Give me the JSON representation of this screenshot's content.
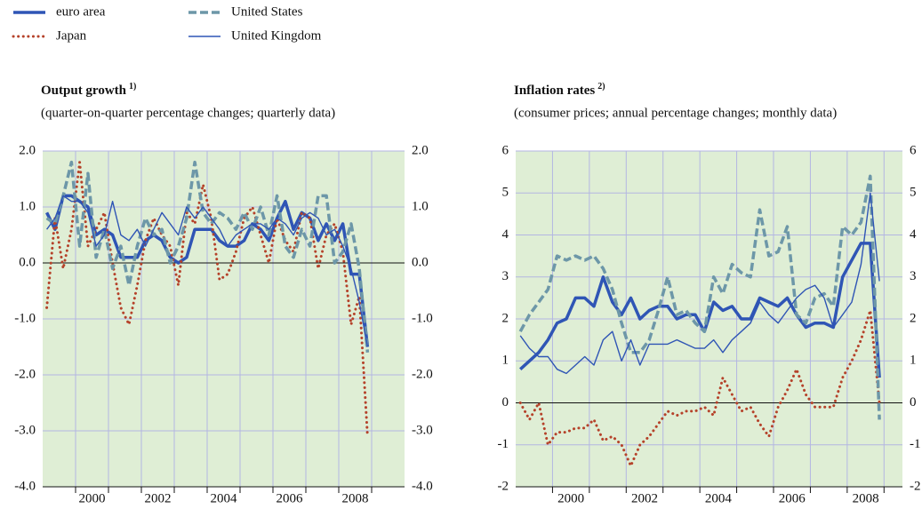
{
  "chart_data": [
    {
      "type": "line",
      "title": "Output growth",
      "title_note": "1)",
      "subtitle": "(quarter-on-quarter percentage changes; quarterly data)",
      "xlim": [
        1999,
        2010
      ],
      "ylim": [
        -4,
        2
      ],
      "yticks": [
        {
          "value": 2,
          "label": "2.0"
        },
        {
          "value": 1,
          "label": "1.0"
        },
        {
          "value": 0,
          "label": "0.0"
        },
        {
          "value": -1,
          "label": "-1.0"
        },
        {
          "value": -2,
          "label": "-2.0"
        },
        {
          "value": -3,
          "label": "-3.0"
        },
        {
          "value": -4,
          "label": "-4.0"
        }
      ],
      "xticks": [
        {
          "value": 2000.5,
          "label": "2000"
        },
        {
          "value": 2002.5,
          "label": "2002"
        },
        {
          "value": 2004.5,
          "label": "2004"
        },
        {
          "value": 2006.5,
          "label": "2006"
        },
        {
          "value": 2008.5,
          "label": "2008"
        }
      ],
      "xgrid": [
        2000,
        2001,
        2002,
        2003,
        2004,
        2005,
        2006,
        2007,
        2008,
        2009
      ],
      "grid": true,
      "x": [
        1999.125,
        1999.375,
        1999.625,
        1999.875,
        2000.125,
        2000.375,
        2000.625,
        2000.875,
        2001.125,
        2001.375,
        2001.625,
        2001.875,
        2002.125,
        2002.375,
        2002.625,
        2002.875,
        2003.125,
        2003.375,
        2003.625,
        2003.875,
        2004.125,
        2004.375,
        2004.625,
        2004.875,
        2005.125,
        2005.375,
        2005.625,
        2005.875,
        2006.125,
        2006.375,
        2006.625,
        2006.875,
        2007.125,
        2007.375,
        2007.625,
        2007.875,
        2008.125,
        2008.375,
        2008.625,
        2008.875
      ],
      "series": [
        {
          "name": "euro area",
          "color": "#2f55b5",
          "style": "thick",
          "values": [
            0.9,
            0.6,
            1.2,
            1.2,
            1.1,
            1.0,
            0.5,
            0.6,
            0.5,
            0.1,
            0.1,
            0.1,
            0.4,
            0.5,
            0.4,
            0.1,
            0.0,
            0.1,
            0.6,
            0.6,
            0.6,
            0.4,
            0.3,
            0.3,
            0.4,
            0.7,
            0.6,
            0.4,
            0.8,
            1.1,
            0.6,
            0.9,
            0.8,
            0.4,
            0.7,
            0.4,
            0.7,
            -0.2,
            -0.2,
            -1.5
          ]
        },
        {
          "name": "Japan",
          "color": "#b5422a",
          "style": "dotted",
          "values": [
            -0.8,
            0.8,
            -0.1,
            0.6,
            1.8,
            0.3,
            0.6,
            0.9,
            0.0,
            -0.8,
            -1.1,
            -0.4,
            0.4,
            0.8,
            0.5,
            0.3,
            -0.4,
            0.9,
            0.7,
            1.4,
            0.8,
            -0.3,
            -0.2,
            0.2,
            0.8,
            1.0,
            0.5,
            0.0,
            0.8,
            0.4,
            0.2,
            0.9,
            0.8,
            -0.1,
            0.5,
            0.7,
            0.2,
            -1.1,
            -0.6,
            -3.1
          ]
        },
        {
          "name": "United States",
          "color": "#6d97a8",
          "style": "dashed",
          "values": [
            0.8,
            0.7,
            1.2,
            1.8,
            0.3,
            1.6,
            0.1,
            0.6,
            -0.1,
            0.3,
            -0.4,
            0.3,
            0.8,
            0.5,
            0.6,
            0.0,
            0.3,
            0.8,
            1.8,
            0.9,
            0.7,
            0.9,
            0.8,
            0.6,
            0.9,
            0.6,
            1.0,
            0.5,
            1.2,
            0.3,
            0.1,
            0.6,
            0.3,
            1.2,
            1.2,
            0.0,
            0.2,
            0.7,
            -0.1,
            -1.6
          ]
        },
        {
          "name": "United Kingdom",
          "color": "#2f55b5",
          "style": "thin",
          "values": [
            0.6,
            0.8,
            1.2,
            1.1,
            1.1,
            0.9,
            0.3,
            0.5,
            1.1,
            0.5,
            0.4,
            0.6,
            0.3,
            0.6,
            0.9,
            0.7,
            0.5,
            1.0,
            0.8,
            1.0,
            0.8,
            0.6,
            0.3,
            0.5,
            0.6,
            0.7,
            0.7,
            0.6,
            0.8,
            0.7,
            0.5,
            0.8,
            0.9,
            0.8,
            0.5,
            0.6,
            0.3,
            -0.1,
            -0.7,
            -1.5
          ]
        }
      ]
    },
    {
      "type": "line",
      "title": "Inflation rates",
      "title_note": "2)",
      "subtitle": "(consumer prices; annual percentage changes; monthly data)",
      "xlim": [
        1999,
        2009.5
      ],
      "ylim": [
        -2,
        6
      ],
      "yticks": [
        6,
        5,
        4,
        3,
        2,
        1,
        0,
        -1,
        -2
      ],
      "xticks": [
        {
          "value": 2000.5,
          "label": "2000"
        },
        {
          "value": 2002.5,
          "label": "2002"
        },
        {
          "value": 2004.5,
          "label": "2004"
        },
        {
          "value": 2006.5,
          "label": "2006"
        },
        {
          "value": 2008.5,
          "label": "2008"
        }
      ],
      "xgrid": [
        2000,
        2001,
        2002,
        2003,
        2004,
        2005,
        2006,
        2007,
        2008,
        2009
      ],
      "grid": true,
      "x": [
        1999.125,
        1999.375,
        1999.625,
        1999.875,
        2000.125,
        2000.375,
        2000.625,
        2000.875,
        2001.125,
        2001.375,
        2001.625,
        2001.875,
        2002.125,
        2002.375,
        2002.625,
        2002.875,
        2003.125,
        2003.375,
        2003.625,
        2003.875,
        2004.125,
        2004.375,
        2004.625,
        2004.875,
        2005.125,
        2005.375,
        2005.625,
        2005.875,
        2006.125,
        2006.375,
        2006.625,
        2006.875,
        2007.125,
        2007.375,
        2007.625,
        2007.875,
        2008.125,
        2008.375,
        2008.625,
        2008.875
      ],
      "series": [
        {
          "name": "euro area",
          "color": "#2f55b5",
          "style": "thick",
          "values": [
            0.8,
            1.0,
            1.2,
            1.5,
            1.9,
            2.0,
            2.5,
            2.5,
            2.3,
            3.0,
            2.4,
            2.1,
            2.5,
            2.0,
            2.2,
            2.3,
            2.3,
            2.0,
            2.1,
            2.1,
            1.7,
            2.4,
            2.2,
            2.3,
            2.0,
            2.0,
            2.5,
            2.4,
            2.3,
            2.5,
            2.1,
            1.8,
            1.9,
            1.9,
            1.8,
            3.0,
            3.4,
            3.8,
            3.8,
            0.6
          ]
        },
        {
          "name": "Japan",
          "color": "#b5422a",
          "style": "dotted",
          "values": [
            0.0,
            -0.4,
            0.0,
            -1.0,
            -0.7,
            -0.7,
            -0.6,
            -0.6,
            -0.4,
            -0.9,
            -0.8,
            -1.0,
            -1.5,
            -1.0,
            -0.8,
            -0.5,
            -0.2,
            -0.3,
            -0.2,
            -0.2,
            -0.1,
            -0.3,
            0.6,
            0.2,
            -0.2,
            -0.1,
            -0.5,
            -0.8,
            -0.1,
            0.3,
            0.8,
            0.2,
            -0.1,
            -0.1,
            -0.1,
            0.6,
            1.0,
            1.5,
            2.2,
            0.0
          ]
        },
        {
          "name": "United States",
          "color": "#6d97a8",
          "style": "dashed",
          "values": [
            1.7,
            2.1,
            2.4,
            2.7,
            3.5,
            3.4,
            3.5,
            3.4,
            3.5,
            3.2,
            2.7,
            1.9,
            1.2,
            1.2,
            1.5,
            2.2,
            3.0,
            2.1,
            2.2,
            1.9,
            1.7,
            3.0,
            2.6,
            3.3,
            3.1,
            3.0,
            4.6,
            3.5,
            3.6,
            4.2,
            2.1,
            1.9,
            2.5,
            2.6,
            2.3,
            4.2,
            4.0,
            4.3,
            5.4,
            -0.4
          ]
        },
        {
          "name": "United Kingdom",
          "color": "#2f55b5",
          "style": "thin",
          "values": [
            1.6,
            1.3,
            1.1,
            1.1,
            0.8,
            0.7,
            0.9,
            1.1,
            0.9,
            1.5,
            1.7,
            1.0,
            1.5,
            0.9,
            1.4,
            1.4,
            1.4,
            1.5,
            1.4,
            1.3,
            1.3,
            1.5,
            1.2,
            1.5,
            1.7,
            1.9,
            2.4,
            2.1,
            1.9,
            2.2,
            2.5,
            2.7,
            2.8,
            2.5,
            1.8,
            2.1,
            2.4,
            3.3,
            5.0,
            2.9
          ]
        }
      ]
    }
  ]
}
